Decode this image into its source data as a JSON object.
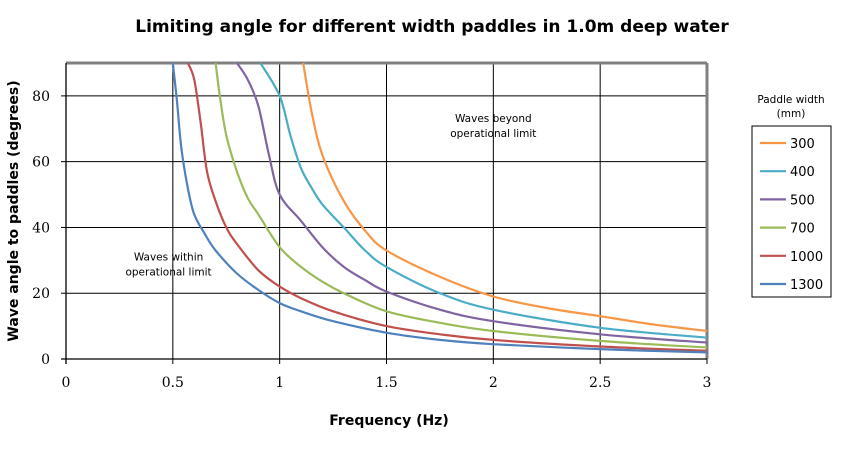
{
  "chart_data": {
    "type": "line",
    "title": "Limiting angle for different width paddles in 1.0m deep water",
    "xlabel": "Frequency (Hz)",
    "ylabel": "Wave angle to paddles (degrees)",
    "xlim": [
      0,
      3
    ],
    "ylim": [
      0,
      90
    ],
    "x_ticks": [
      0,
      0.5,
      1,
      1.5,
      2,
      2.5,
      3
    ],
    "x_tick_labels": [
      "0",
      "0.5",
      "1",
      "1.5",
      "2",
      "2.5",
      "3"
    ],
    "y_ticks": [
      0,
      20,
      40,
      60,
      80
    ],
    "y_tick_labels": [
      "0",
      "20",
      "40",
      "60",
      "80"
    ],
    "grid": true,
    "legend": {
      "title_lines": [
        "Paddle width",
        "(mm)"
      ],
      "placement": "right"
    },
    "annotations": [
      {
        "lines": [
          "Waves beyond",
          "operational limit"
        ],
        "x": 2.0,
        "y": 72
      },
      {
        "lines": [
          "Waves within",
          "operational limit"
        ],
        "x": 0.48,
        "y": 30
      }
    ],
    "series": [
      {
        "name": "300",
        "color": "#F79646",
        "points": [
          [
            1.11,
            90
          ],
          [
            1.15,
            75
          ],
          [
            1.2,
            62
          ],
          [
            1.3,
            48
          ],
          [
            1.4,
            39
          ],
          [
            1.5,
            33
          ],
          [
            1.75,
            25
          ],
          [
            2.0,
            19
          ],
          [
            2.25,
            15.5
          ],
          [
            2.5,
            13
          ],
          [
            2.75,
            10.5
          ],
          [
            3.0,
            8.5
          ]
        ]
      },
      {
        "name": "400",
        "color": "#4BACC6",
        "points": [
          [
            0.91,
            90
          ],
          [
            1.0,
            80
          ],
          [
            1.05,
            68
          ],
          [
            1.1,
            58
          ],
          [
            1.15,
            52
          ],
          [
            1.2,
            47
          ],
          [
            1.3,
            40
          ],
          [
            1.4,
            33
          ],
          [
            1.5,
            28
          ],
          [
            1.75,
            20
          ],
          [
            2.0,
            15
          ],
          [
            2.5,
            9.5
          ],
          [
            3.0,
            6.5
          ]
        ]
      },
      {
        "name": "500",
        "color": "#8064A2",
        "points": [
          [
            0.8,
            90
          ],
          [
            0.85,
            85
          ],
          [
            0.9,
            77
          ],
          [
            0.95,
            62
          ],
          [
            1.0,
            50
          ],
          [
            1.1,
            42
          ],
          [
            1.2,
            34
          ],
          [
            1.3,
            28
          ],
          [
            1.4,
            24
          ],
          [
            1.5,
            20.5
          ],
          [
            1.75,
            15
          ],
          [
            2.0,
            11.5
          ],
          [
            2.5,
            7.5
          ],
          [
            3.0,
            5
          ]
        ]
      },
      {
        "name": "700",
        "color": "#9BBB59",
        "points": [
          [
            0.7,
            90
          ],
          [
            0.72,
            80
          ],
          [
            0.75,
            68
          ],
          [
            0.8,
            57
          ],
          [
            0.85,
            49
          ],
          [
            0.9,
            44
          ],
          [
            1.0,
            34
          ],
          [
            1.1,
            28
          ],
          [
            1.2,
            23.5
          ],
          [
            1.3,
            20
          ],
          [
            1.5,
            14.5
          ],
          [
            1.75,
            11
          ],
          [
            2.0,
            8.5
          ],
          [
            2.5,
            5.5
          ],
          [
            3.0,
            3.5
          ]
        ]
      },
      {
        "name": "1000",
        "color": "#C0504D",
        "points": [
          [
            0.57,
            90
          ],
          [
            0.6,
            85
          ],
          [
            0.63,
            72
          ],
          [
            0.66,
            57
          ],
          [
            0.7,
            48
          ],
          [
            0.75,
            40
          ],
          [
            0.8,
            35
          ],
          [
            0.9,
            27
          ],
          [
            1.0,
            22
          ],
          [
            1.1,
            18.5
          ],
          [
            1.25,
            14.5
          ],
          [
            1.5,
            10
          ],
          [
            1.75,
            7.5
          ],
          [
            2.0,
            5.8
          ],
          [
            2.5,
            3.8
          ],
          [
            3.0,
            2.5
          ]
        ]
      },
      {
        "name": "1300",
        "color": "#4F81BD",
        "points": [
          [
            0.5,
            90
          ],
          [
            0.52,
            78
          ],
          [
            0.54,
            64
          ],
          [
            0.57,
            52
          ],
          [
            0.6,
            44
          ],
          [
            0.65,
            38
          ],
          [
            0.7,
            33
          ],
          [
            0.8,
            26
          ],
          [
            0.9,
            21
          ],
          [
            1.0,
            17
          ],
          [
            1.1,
            14.5
          ],
          [
            1.25,
            11.5
          ],
          [
            1.5,
            8
          ],
          [
            1.75,
            5.8
          ],
          [
            2.0,
            4.5
          ],
          [
            2.5,
            3
          ],
          [
            3.0,
            2
          ]
        ]
      }
    ]
  }
}
